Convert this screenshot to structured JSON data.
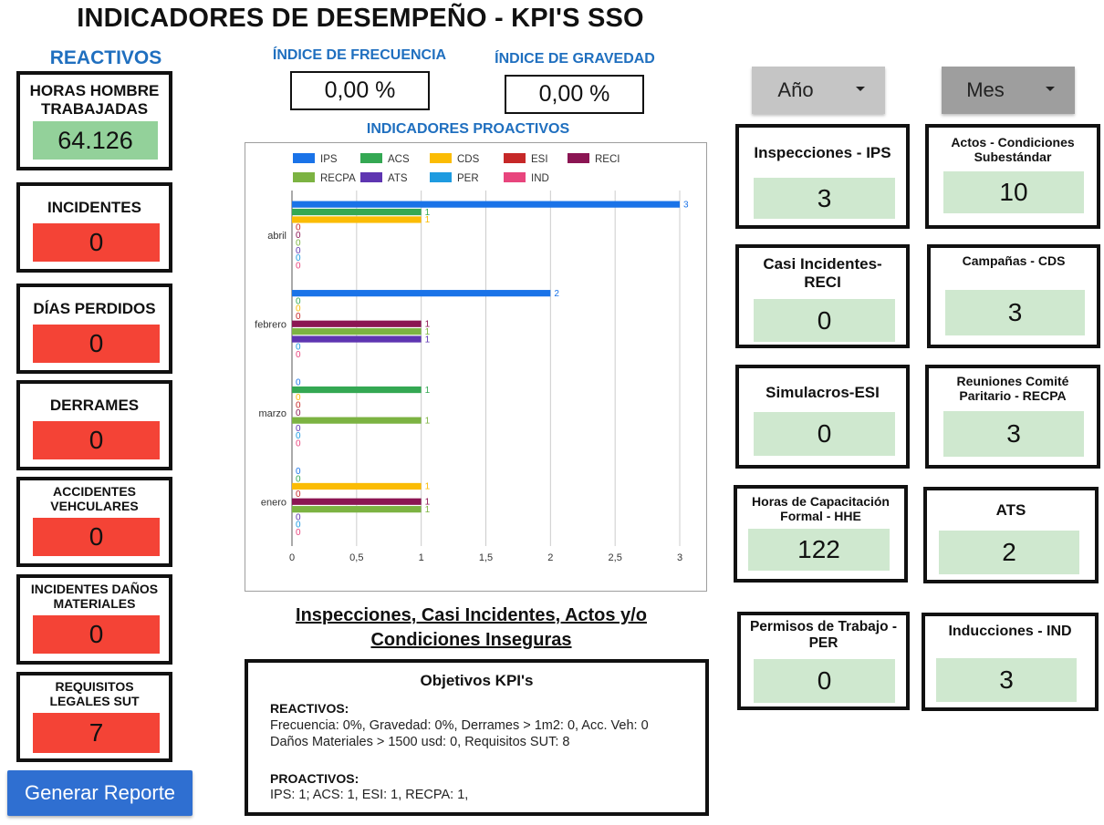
{
  "header": {
    "title": "INDICADORES DE DESEMPEÑO - KPI'S SSO"
  },
  "reactivos": {
    "label": "REACTIVOS",
    "horas": {
      "label": "HORAS HOMBRE TRABAJADAS",
      "value": "64.126"
    },
    "incidentes": {
      "label": "INCIDENTES",
      "value": "0"
    },
    "dias": {
      "label": "DÍAS PERDIDOS",
      "value": "0"
    },
    "derrames": {
      "label": "DERRAMES",
      "value": "0"
    },
    "accidentes": {
      "label": "ACCIDENTES VEHCULARES",
      "value": "0"
    },
    "danos": {
      "label": "INCIDENTES DAÑOS MATERIALES",
      "value": "0"
    },
    "requisitos": {
      "label": "REQUISITOS LEGALES SUT",
      "value": "7"
    }
  },
  "indices": {
    "frecuencia": {
      "label": "ÍNDICE DE FRECUENCIA",
      "value": "0,00 %"
    },
    "gravedad": {
      "label": "ÍNDICE DE GRAVEDAD",
      "value": "0,00 %"
    }
  },
  "filters": {
    "year_label": "Año",
    "month_label": "Mes"
  },
  "chart_title": "INDICADORES PROACTIVOS",
  "chart_data": {
    "type": "bar",
    "orientation": "horizontal",
    "categories": [
      "abril",
      "febrero",
      "marzo",
      "enero"
    ],
    "series": [
      {
        "name": "IPS",
        "color": "#1a73e8",
        "values": [
          3,
          2,
          0,
          0
        ]
      },
      {
        "name": "ACS",
        "color": "#34a853",
        "values": [
          1,
          0,
          1,
          0
        ]
      },
      {
        "name": "CDS",
        "color": "#fbbc04",
        "values": [
          1,
          0,
          0,
          1
        ]
      },
      {
        "name": "ESI",
        "color": "#c62828",
        "values": [
          0,
          0,
          0,
          0
        ]
      },
      {
        "name": "RECI",
        "color": "#8b1553",
        "values": [
          0,
          1,
          0,
          1
        ]
      },
      {
        "name": "RECPA",
        "color": "#7cb342",
        "values": [
          0,
          1,
          1,
          1
        ]
      },
      {
        "name": "ATS",
        "color": "#5e35b1",
        "values": [
          0,
          1,
          0,
          0
        ]
      },
      {
        "name": "PER",
        "color": "#1e9be0",
        "values": [
          0,
          0,
          0,
          0
        ]
      },
      {
        "name": "IND",
        "color": "#e8457d",
        "values": [
          0,
          0,
          0,
          0
        ]
      }
    ],
    "x_ticks": [
      "0",
      "0,5",
      "1",
      "1,5",
      "2",
      "2,5",
      "3"
    ],
    "xlim": [
      0,
      3
    ],
    "grid": true,
    "legend": "top"
  },
  "subtitle_line1": "Inspecciones, Casi Incidentes, Actos y/o",
  "subtitle_line2": "Condiciones Inseguras",
  "objetivos": {
    "title": "Objetivos KPI's",
    "reactivos_head": "REACTIVOS:",
    "reactivos_line1": "Frecuencia: 0%, Gravedad: 0%, Derrames > 1m2: 0, Acc. Veh: 0",
    "reactivos_line2": "Daños Materiales > 1500 usd: 0, Requisitos SUT: 8",
    "proactivos_head": "PROACTIVOS:",
    "proactivos_line1": "IPS: 1; ACS: 1, ESI: 1, RECPA: 1,"
  },
  "report_button": "Generar Reporte",
  "proactive_cards": {
    "ips": {
      "label": "Inspecciones - IPS",
      "value": "3"
    },
    "acs": {
      "label": "Actos - Condiciones Subestándar",
      "value": "10"
    },
    "reci": {
      "label": "Casi Incidentes- RECI",
      "value": "0"
    },
    "cds": {
      "label": "Campañas - CDS",
      "value": "3"
    },
    "esi": {
      "label": "Simulacros-ESI",
      "value": "0"
    },
    "recpa": {
      "label": "Reuniones Comité Paritario - RECPA",
      "value": "3"
    },
    "hhe": {
      "label": "Horas de Capacitación Formal - HHE",
      "value": "122"
    },
    "ats": {
      "label": "ATS",
      "value": "2"
    },
    "per": {
      "label": "Permisos de Trabajo - PER",
      "value": "0"
    },
    "ind": {
      "label": "Inducciones - IND",
      "value": "3"
    }
  }
}
